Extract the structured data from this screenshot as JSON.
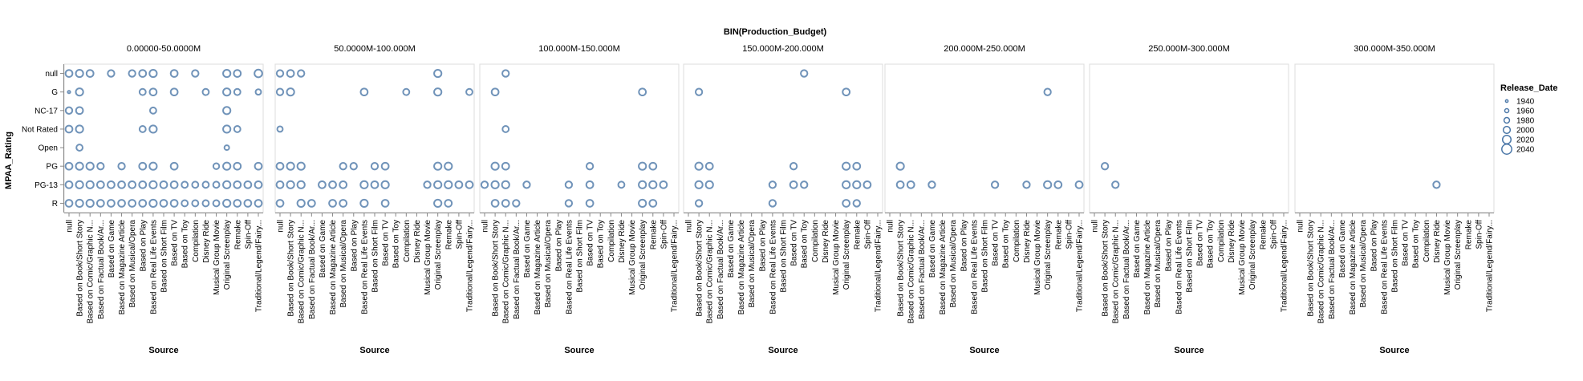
{
  "chart_data": {
    "type": "scatter",
    "facet_field": "BIN(Production_Budget)",
    "facets": [
      "0.00000-50.0000M",
      "50.0000M-100.000M",
      "100.000M-150.000M",
      "150.000M-200.000M",
      "200.000M-250.000M",
      "250.000M-300.000M",
      "300.000M-350.000M"
    ],
    "xlabel": "Source",
    "ylabel": "MPAA_Rating",
    "x_categories": [
      "null",
      "Based on Book/Short Story",
      "Based on Comic/Graphic N...",
      "Based on Factual Book/Ar...",
      "Based on Game",
      "Based on Magazine Article",
      "Based on Musical/Opera",
      "Based on Play",
      "Based on Real Life Events",
      "Based on Short Film",
      "Based on TV",
      "Based on Toy",
      "Compilation",
      "Disney Ride",
      "Musical Group Movie",
      "Original Screenplay",
      "Remake",
      "Spin-Off",
      "Traditional/Legend/Fairy..."
    ],
    "y_categories": [
      "null",
      "G",
      "NC-17",
      "Not Rated",
      "Open",
      "PG",
      "PG-13",
      "R"
    ],
    "size_legend": {
      "title": "Release_Date",
      "values": [
        "1940",
        "1960",
        "1980",
        "2000",
        "2020",
        "2040"
      ]
    },
    "color": "#4c78a8",
    "grid": false,
    "legend_position": "right",
    "points": [
      [
        0,
        0,
        0,
        2000
      ],
      [
        0,
        0,
        1,
        2005
      ],
      [
        0,
        0,
        2,
        2000
      ],
      [
        0,
        0,
        4,
        1995
      ],
      [
        0,
        0,
        6,
        1995
      ],
      [
        0,
        0,
        7,
        2000
      ],
      [
        0,
        0,
        8,
        2005
      ],
      [
        0,
        0,
        10,
        2000
      ],
      [
        0,
        0,
        12,
        1995
      ],
      [
        0,
        0,
        15,
        2005
      ],
      [
        0,
        0,
        16,
        2000
      ],
      [
        0,
        0,
        18,
        2010
      ],
      [
        0,
        1,
        0,
        1940
      ],
      [
        0,
        1,
        1,
        2005
      ],
      [
        0,
        1,
        7,
        1990
      ],
      [
        0,
        1,
        8,
        2000
      ],
      [
        0,
        1,
        10,
        2000
      ],
      [
        0,
        1,
        13,
        1990
      ],
      [
        0,
        1,
        15,
        2005
      ],
      [
        0,
        1,
        16,
        1990
      ],
      [
        0,
        1,
        18,
        1980
      ],
      [
        0,
        2,
        0,
        1995
      ],
      [
        0,
        2,
        1,
        2000
      ],
      [
        0,
        2,
        8,
        1990
      ],
      [
        0,
        2,
        15,
        2005
      ],
      [
        0,
        3,
        0,
        2000
      ],
      [
        0,
        3,
        1,
        2005
      ],
      [
        0,
        3,
        7,
        1990
      ],
      [
        0,
        3,
        8,
        2005
      ],
      [
        0,
        3,
        15,
        2005
      ],
      [
        0,
        3,
        16,
        1990
      ],
      [
        0,
        4,
        1,
        1990
      ],
      [
        0,
        4,
        15,
        1970
      ],
      [
        0,
        5,
        0,
        2000
      ],
      [
        0,
        5,
        1,
        2005
      ],
      [
        0,
        5,
        2,
        2005
      ],
      [
        0,
        5,
        3,
        1995
      ],
      [
        0,
        5,
        5,
        1995
      ],
      [
        0,
        5,
        7,
        2000
      ],
      [
        0,
        5,
        8,
        2005
      ],
      [
        0,
        5,
        10,
        2000
      ],
      [
        0,
        5,
        14,
        1985
      ],
      [
        0,
        5,
        15,
        2005
      ],
      [
        0,
        5,
        16,
        2000
      ],
      [
        0,
        5,
        18,
        2000
      ],
      [
        0,
        6,
        0,
        2000
      ],
      [
        0,
        6,
        1,
        2005
      ],
      [
        0,
        6,
        2,
        2005
      ],
      [
        0,
        6,
        3,
        2000
      ],
      [
        0,
        6,
        4,
        2000
      ],
      [
        0,
        6,
        5,
        2000
      ],
      [
        0,
        6,
        6,
        2000
      ],
      [
        0,
        6,
        7,
        2000
      ],
      [
        0,
        6,
        8,
        2005
      ],
      [
        0,
        6,
        9,
        2000
      ],
      [
        0,
        6,
        10,
        2000
      ],
      [
        0,
        6,
        11,
        1990
      ],
      [
        0,
        6,
        12,
        1990
      ],
      [
        0,
        6,
        13,
        1990
      ],
      [
        0,
        6,
        14,
        1990
      ],
      [
        0,
        6,
        15,
        2005
      ],
      [
        0,
        6,
        16,
        2000
      ],
      [
        0,
        6,
        17,
        2000
      ],
      [
        0,
        6,
        18,
        2000
      ],
      [
        0,
        7,
        0,
        2000
      ],
      [
        0,
        7,
        1,
        2005
      ],
      [
        0,
        7,
        2,
        2005
      ],
      [
        0,
        7,
        3,
        2000
      ],
      [
        0,
        7,
        4,
        2000
      ],
      [
        0,
        7,
        5,
        2000
      ],
      [
        0,
        7,
        6,
        2000
      ],
      [
        0,
        7,
        7,
        2000
      ],
      [
        0,
        7,
        8,
        2005
      ],
      [
        0,
        7,
        9,
        2000
      ],
      [
        0,
        7,
        10,
        2000
      ],
      [
        0,
        7,
        11,
        1990
      ],
      [
        0,
        7,
        12,
        1990
      ],
      [
        0,
        7,
        13,
        1990
      ],
      [
        0,
        7,
        14,
        1990
      ],
      [
        0,
        7,
        15,
        2005
      ],
      [
        0,
        7,
        16,
        2000
      ],
      [
        0,
        7,
        17,
        2000
      ],
      [
        0,
        7,
        18,
        2000
      ],
      [
        1,
        0,
        0,
        1995
      ],
      [
        1,
        0,
        1,
        2000
      ],
      [
        1,
        0,
        2,
        1995
      ],
      [
        1,
        0,
        15,
        2005
      ],
      [
        1,
        1,
        0,
        1995
      ],
      [
        1,
        1,
        1,
        2005
      ],
      [
        1,
        1,
        8,
        2000
      ],
      [
        1,
        1,
        12,
        1990
      ],
      [
        1,
        1,
        15,
        2005
      ],
      [
        1,
        1,
        18,
        1990
      ],
      [
        1,
        3,
        0,
        1980
      ],
      [
        1,
        5,
        0,
        2000
      ],
      [
        1,
        5,
        1,
        2005
      ],
      [
        1,
        5,
        2,
        2005
      ],
      [
        1,
        5,
        6,
        1995
      ],
      [
        1,
        5,
        7,
        1995
      ],
      [
        1,
        5,
        9,
        1995
      ],
      [
        1,
        5,
        10,
        2000
      ],
      [
        1,
        5,
        15,
        2005
      ],
      [
        1,
        5,
        16,
        2005
      ],
      [
        1,
        6,
        0,
        2000
      ],
      [
        1,
        6,
        1,
        2005
      ],
      [
        1,
        6,
        2,
        2005
      ],
      [
        1,
        6,
        4,
        2000
      ],
      [
        1,
        6,
        5,
        2000
      ],
      [
        1,
        6,
        6,
        2000
      ],
      [
        1,
        6,
        8,
        2005
      ],
      [
        1,
        6,
        9,
        2000
      ],
      [
        1,
        6,
        10,
        2005
      ],
      [
        1,
        6,
        14,
        1995
      ],
      [
        1,
        6,
        15,
        2005
      ],
      [
        1,
        6,
        16,
        2005
      ],
      [
        1,
        6,
        17,
        2000
      ],
      [
        1,
        6,
        18,
        2000
      ],
      [
        1,
        7,
        0,
        2000
      ],
      [
        1,
        7,
        2,
        2005
      ],
      [
        1,
        7,
        3,
        2000
      ],
      [
        1,
        7,
        5,
        2000
      ],
      [
        1,
        7,
        6,
        2000
      ],
      [
        1,
        7,
        8,
        2005
      ],
      [
        1,
        7,
        10,
        2000
      ],
      [
        1,
        7,
        15,
        2005
      ],
      [
        1,
        7,
        16,
        2000
      ],
      [
        2,
        0,
        2,
        1995
      ],
      [
        2,
        1,
        1,
        2000
      ],
      [
        2,
        1,
        15,
        2000
      ],
      [
        2,
        3,
        2,
        1990
      ],
      [
        2,
        5,
        1,
        2005
      ],
      [
        2,
        5,
        2,
        2000
      ],
      [
        2,
        5,
        10,
        1995
      ],
      [
        2,
        5,
        15,
        2005
      ],
      [
        2,
        5,
        16,
        2000
      ],
      [
        2,
        6,
        0,
        1995
      ],
      [
        2,
        6,
        1,
        2005
      ],
      [
        2,
        6,
        2,
        2005
      ],
      [
        2,
        6,
        4,
        1995
      ],
      [
        2,
        6,
        8,
        1995
      ],
      [
        2,
        6,
        10,
        2000
      ],
      [
        2,
        6,
        13,
        1990
      ],
      [
        2,
        6,
        15,
        2005
      ],
      [
        2,
        6,
        16,
        2005
      ],
      [
        2,
        6,
        17,
        2000
      ],
      [
        2,
        7,
        1,
        2000
      ],
      [
        2,
        7,
        2,
        2000
      ],
      [
        2,
        7,
        3,
        1995
      ],
      [
        2,
        7,
        8,
        1995
      ],
      [
        2,
        7,
        10,
        2000
      ],
      [
        2,
        7,
        15,
        2005
      ],
      [
        2,
        7,
        16,
        2000
      ],
      [
        3,
        0,
        11,
        1995
      ],
      [
        3,
        1,
        1,
        1995
      ],
      [
        3,
        1,
        15,
        2000
      ],
      [
        3,
        5,
        1,
        2005
      ],
      [
        3,
        5,
        2,
        2000
      ],
      [
        3,
        5,
        10,
        1995
      ],
      [
        3,
        5,
        15,
        2005
      ],
      [
        3,
        5,
        16,
        2000
      ],
      [
        3,
        6,
        1,
        2005
      ],
      [
        3,
        6,
        2,
        2005
      ],
      [
        3,
        6,
        8,
        1995
      ],
      [
        3,
        6,
        10,
        2000
      ],
      [
        3,
        6,
        11,
        1995
      ],
      [
        3,
        6,
        15,
        2005
      ],
      [
        3,
        6,
        16,
        2005
      ],
      [
        3,
        6,
        17,
        2000
      ],
      [
        3,
        7,
        1,
        1995
      ],
      [
        3,
        7,
        8,
        1995
      ],
      [
        3,
        7,
        15,
        2000
      ],
      [
        3,
        7,
        16,
        1995
      ],
      [
        4,
        1,
        15,
        1995
      ],
      [
        4,
        5,
        1,
        2005
      ],
      [
        4,
        6,
        1,
        2000
      ],
      [
        4,
        6,
        2,
        2000
      ],
      [
        4,
        6,
        4,
        1995
      ],
      [
        4,
        6,
        10,
        1995
      ],
      [
        4,
        6,
        13,
        1995
      ],
      [
        4,
        6,
        15,
        2005
      ],
      [
        4,
        6,
        16,
        2000
      ],
      [
        4,
        6,
        18,
        2000
      ],
      [
        5,
        5,
        1,
        1995
      ],
      [
        5,
        6,
        2,
        1995
      ],
      [
        6,
        6,
        13,
        1995
      ]
    ]
  }
}
